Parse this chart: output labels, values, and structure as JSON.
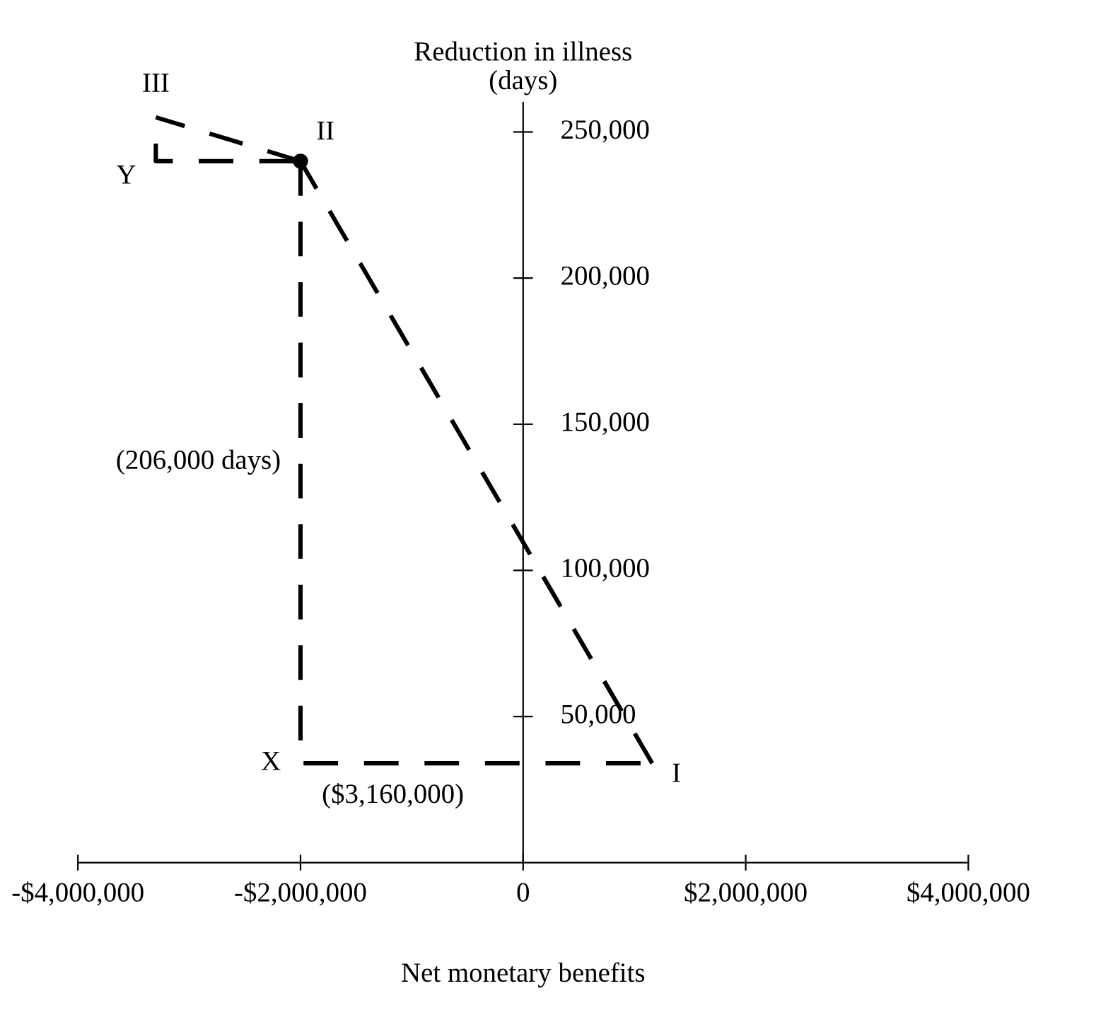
{
  "chart_data": {
    "type": "line",
    "xlabel": "Net monetary benefits",
    "ylabel": "Reduction in illness\n(days)",
    "xlim": [
      -4000000,
      4000000
    ],
    "ylim": [
      0,
      260000
    ],
    "xticks": [
      {
        "value": -4000000,
        "label": "-$4,000,000"
      },
      {
        "value": -2000000,
        "label": "-$2,000,000"
      },
      0,
      {
        "value": 2000000,
        "label": "$2,000,000"
      },
      {
        "value": 4000000,
        "label": "$4,000,000"
      }
    ],
    "yticks": [
      {
        "value": 50000,
        "label": "50,000"
      },
      {
        "value": 100000,
        "label": "100,000"
      },
      {
        "value": 150000,
        "label": "150,000"
      },
      {
        "value": 200000,
        "label": "200,000"
      },
      {
        "value": 250000,
        "label": "250,000"
      }
    ],
    "grid": false,
    "legend": false,
    "line_style": "dashed",
    "marker": "none",
    "series": [
      {
        "color": "#000000",
        "x": [
          1160000,
          -2000000
        ],
        "values": [
          34000,
          240000
        ]
      },
      {
        "color": "#000000",
        "x": [
          -2000000,
          -3300000
        ],
        "values": [
          240000,
          255000
        ]
      },
      {
        "color": "#000000",
        "x": [
          -3300000,
          -3300000,
          -2000000
        ],
        "values": [
          246000,
          240000,
          240000
        ]
      },
      {
        "color": "#000000",
        "x": [
          -2000000,
          -2000000,
          1160000
        ],
        "values": [
          240000,
          34000,
          34000
        ]
      },
      {
        "type": "scatter",
        "marker": "circle",
        "color": "#000000",
        "x": [
          -2000000
        ],
        "values": [
          240000
        ]
      }
    ],
    "annotations": [
      {
        "text": "I",
        "x": 1160000,
        "y": 34000
      },
      {
        "text": "II",
        "x": -2000000,
        "y": 240000
      },
      {
        "text": "III",
        "x": -3300000,
        "y": 255000
      },
      {
        "text": "X",
        "x": -2000000,
        "y": 34000
      },
      {
        "text": "Y",
        "x": -3300000,
        "y": 240000
      },
      {
        "text": "($3,160,000)",
        "x": -1170000,
        "y": 34000
      },
      {
        "text": "(206,000 days)",
        "x": -2000000,
        "y": 137000
      }
    ]
  }
}
